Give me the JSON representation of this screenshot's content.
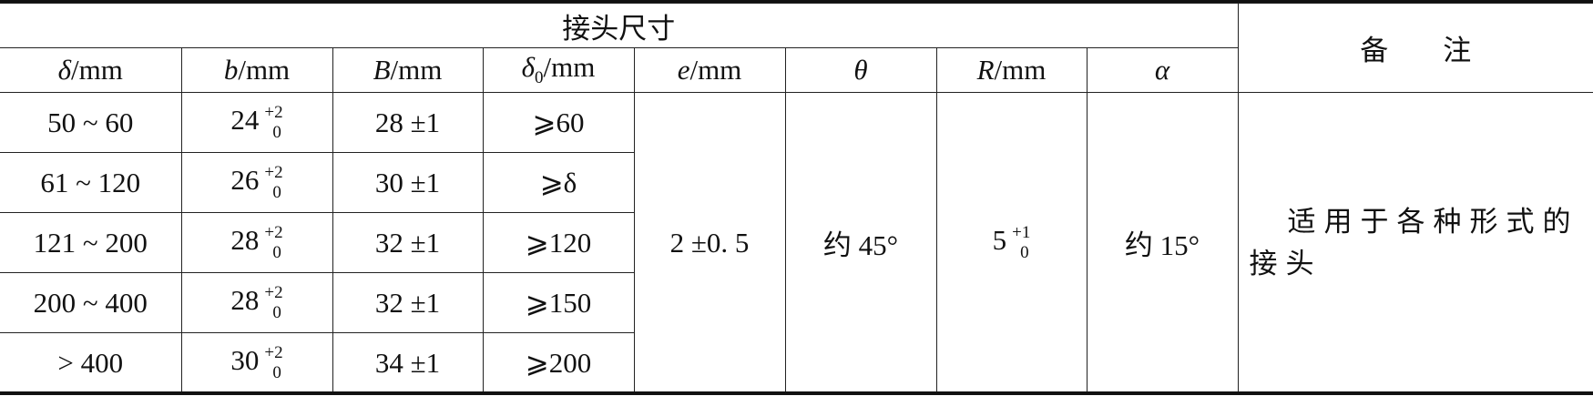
{
  "table": {
    "group_header": "接头尺寸",
    "remarks_header": "备注",
    "columns": [
      {
        "sym": "δ",
        "unit": "/mm"
      },
      {
        "sym": "b",
        "unit": "/mm"
      },
      {
        "sym": "B",
        "unit": "/mm"
      },
      {
        "sym": "δ",
        "sub": "0",
        "unit": "/mm"
      },
      {
        "sym": "e",
        "unit": "/mm"
      },
      {
        "sym": "θ",
        "unit": ""
      },
      {
        "sym": "R",
        "unit": "/mm"
      },
      {
        "sym": "α",
        "unit": ""
      }
    ],
    "rows": [
      {
        "delta": "50 ~ 60",
        "b_base": "24",
        "b_upper": "+2",
        "b_lower": "0",
        "B": "28 ±1",
        "delta0": "⩾60"
      },
      {
        "delta": "61 ~ 120",
        "b_base": "26",
        "b_upper": "+2",
        "b_lower": "0",
        "B": "30 ±1",
        "delta0": "⩾δ"
      },
      {
        "delta": "121 ~ 200",
        "b_base": "28",
        "b_upper": "+2",
        "b_lower": "0",
        "B": "32 ±1",
        "delta0": "⩾120"
      },
      {
        "delta": "200 ~ 400",
        "b_base": "28",
        "b_upper": "+2",
        "b_lower": "0",
        "B": "32 ±1",
        "delta0": "⩾150"
      },
      {
        "delta": "> 400",
        "b_base": "30",
        "b_upper": "+2",
        "b_lower": "0",
        "B": "34 ±1",
        "delta0": "⩾200"
      }
    ],
    "shared": {
      "e": "2 ±0. 5",
      "theta": "约 45°",
      "R_base": "5",
      "R_upper": "+1",
      "R_lower": "0",
      "alpha": "约 15°",
      "remark": "适用于各种形式的接头"
    }
  }
}
